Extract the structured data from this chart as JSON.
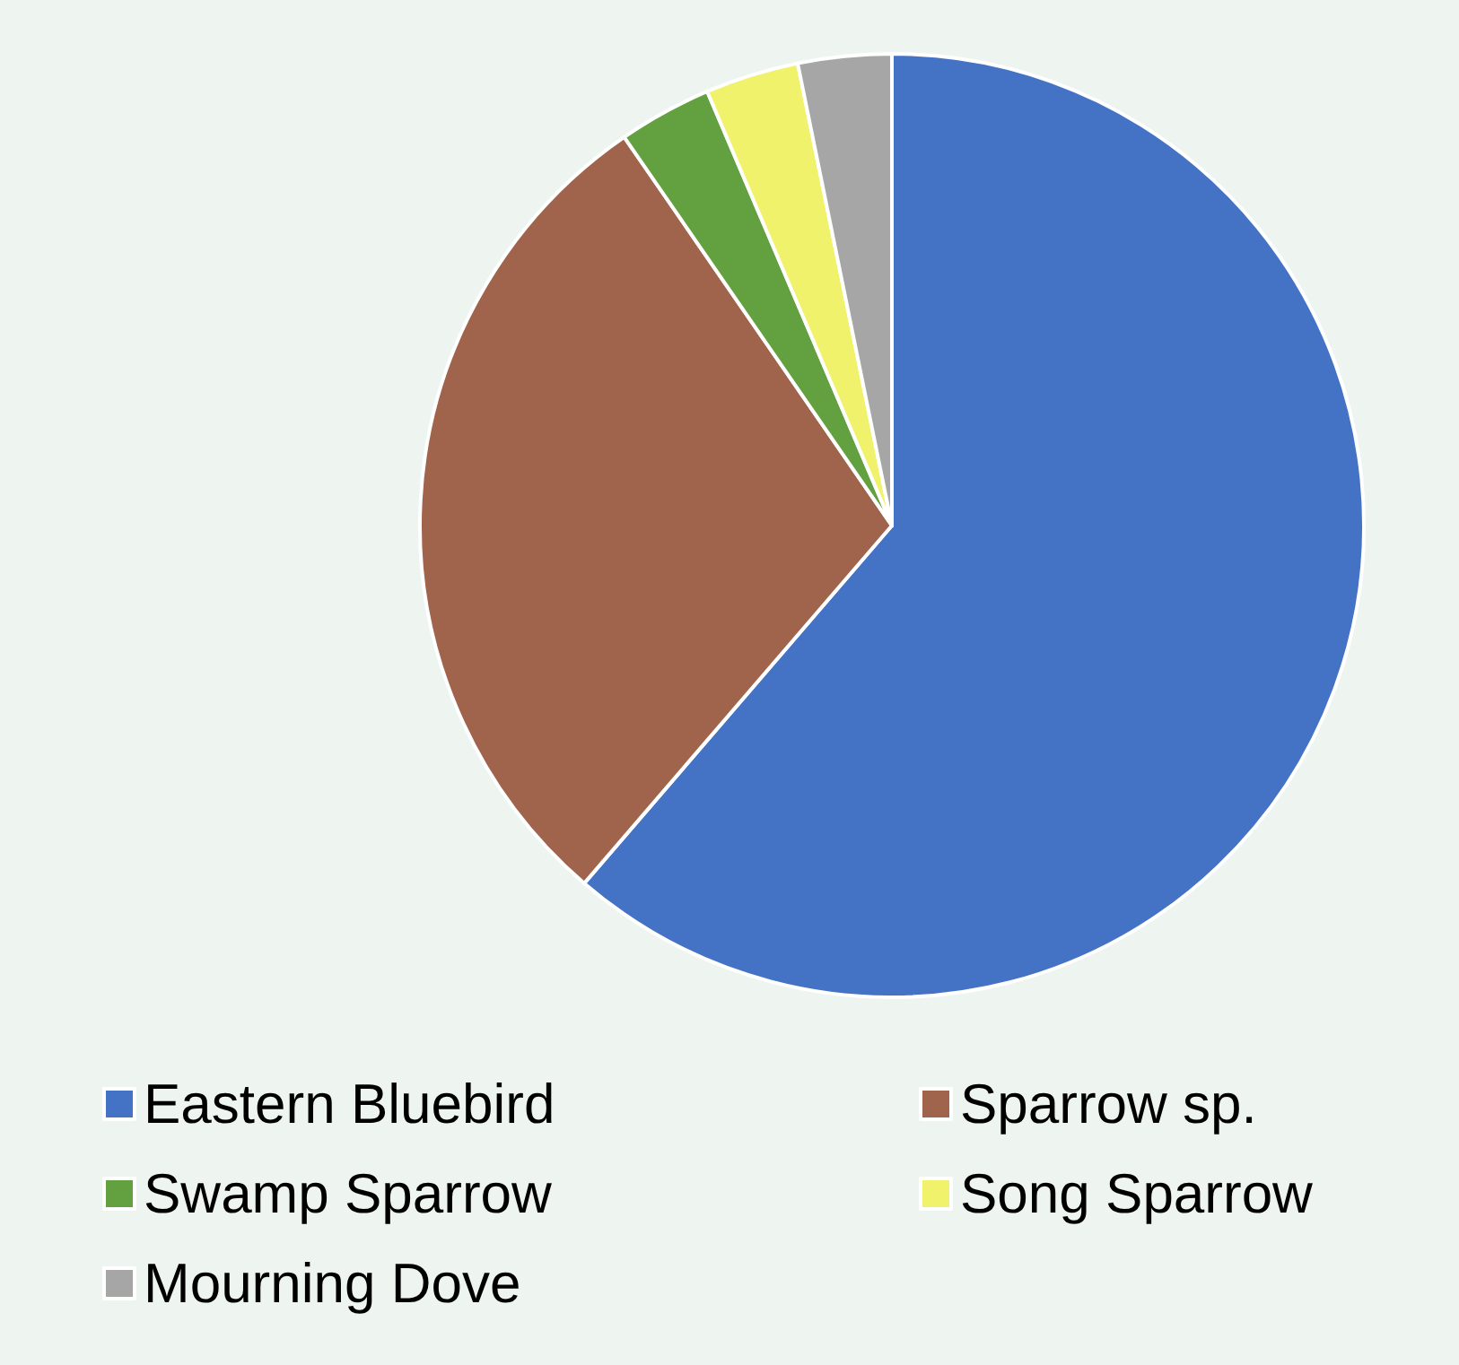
{
  "chart_data": {
    "type": "pie",
    "categories": [
      "Eastern Bluebird",
      "Sparrow sp.",
      "Swamp Sparrow",
      "Song Sparrow",
      "Mourning Dove"
    ],
    "values": [
      61.3,
      29.1,
      3.2,
      3.2,
      3.2
    ],
    "colors": [
      "#4472c4",
      "#a0634b",
      "#63a03f",
      "#f1f26c",
      "#a6a6a6"
    ],
    "legend": "bottom"
  }
}
